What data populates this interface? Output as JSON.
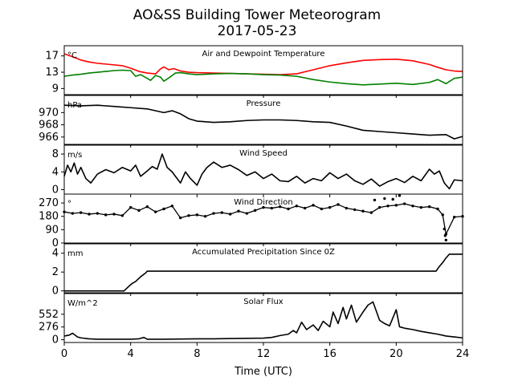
{
  "figure": {
    "title": "AO&SS Building Tower Meteorogram",
    "subtitle": "2017-05-23",
    "xlabel": "Time (UTC)"
  },
  "chart_data": [
    {
      "type": "line",
      "title": "Air and Dewpoint Temperature",
      "unit_label": "°C",
      "xlim": [
        0,
        24
      ],
      "ylim": [
        7.5,
        19.5
      ],
      "yticks": [
        9,
        13,
        17
      ],
      "xticks": [
        0,
        4,
        8,
        12,
        16,
        20,
        24
      ],
      "series": [
        {
          "color": "#ff0000",
          "x": [
            0,
            0.5,
            1,
            1.5,
            2,
            2.5,
            3,
            3.5,
            4,
            4.5,
            5,
            5.5,
            5.8,
            6,
            6.3,
            6.6,
            7,
            7.5,
            8,
            9,
            10,
            11,
            12,
            13,
            14,
            15,
            16,
            17,
            18,
            19,
            20,
            21,
            22,
            22.5,
            23,
            23.5,
            24
          ],
          "values": [
            17.5,
            16.8,
            16.0,
            15.5,
            15.2,
            15.0,
            14.8,
            14.6,
            14.0,
            13.2,
            12.8,
            12.6,
            13.8,
            14.3,
            13.6,
            13.9,
            13.3,
            13.0,
            12.9,
            12.8,
            12.7,
            12.6,
            12.5,
            12.4,
            12.6,
            13.6,
            14.6,
            15.3,
            15.9,
            16.1,
            16.2,
            15.8,
            14.9,
            14.2,
            13.6,
            13.3,
            13.2
          ]
        },
        {
          "color": "#008000",
          "x": [
            0,
            0.5,
            1,
            1.5,
            2,
            2.5,
            3,
            3.5,
            4,
            4.3,
            4.6,
            5,
            5.2,
            5.5,
            5.8,
            6,
            6.3,
            6.7,
            7,
            7.5,
            8,
            9,
            10,
            11,
            12,
            13,
            14,
            15,
            16,
            17,
            18,
            19,
            20,
            21,
            22,
            22.5,
            23,
            23.5,
            24
          ],
          "values": [
            12.0,
            12.3,
            12.5,
            12.8,
            13.0,
            13.2,
            13.4,
            13.5,
            13.4,
            12.0,
            12.4,
            11.5,
            11.0,
            12.2,
            11.8,
            10.8,
            11.6,
            12.8,
            12.9,
            12.6,
            12.4,
            12.6,
            12.7,
            12.6,
            12.4,
            12.3,
            12.0,
            11.2,
            10.6,
            10.2,
            9.9,
            10.1,
            10.3,
            10.0,
            10.5,
            11.2,
            10.2,
            11.5,
            11.8
          ]
        }
      ]
    },
    {
      "type": "line",
      "title": "Pressure",
      "unit_label": "hPa",
      "xlim": [
        0,
        24
      ],
      "ylim": [
        964.8,
        972.8
      ],
      "yticks": [
        966,
        968,
        970
      ],
      "xticks": [
        0,
        4,
        8,
        12,
        16,
        20,
        24
      ],
      "series": [
        {
          "color": "#000000",
          "x": [
            0,
            1,
            2,
            3,
            4,
            5,
            6,
            6.5,
            7,
            7.5,
            8,
            9,
            10,
            11,
            12,
            13,
            14,
            15,
            16,
            17,
            18,
            19,
            20,
            21,
            22,
            23,
            23.5,
            24
          ],
          "values": [
            971.2,
            971.1,
            971.2,
            971.0,
            970.8,
            970.6,
            970.0,
            970.3,
            969.8,
            969.0,
            968.6,
            968.4,
            968.5,
            968.7,
            968.8,
            968.8,
            968.7,
            968.5,
            968.4,
            967.8,
            967.1,
            966.9,
            966.7,
            966.5,
            966.3,
            966.4,
            965.7,
            966.1
          ]
        }
      ]
    },
    {
      "type": "line",
      "title": "Wind Speed",
      "unit_label": "m/s",
      "xlim": [
        0,
        24
      ],
      "ylim": [
        -1,
        10
      ],
      "yticks": [
        0,
        4,
        8
      ],
      "xticks": [
        0,
        4,
        8,
        12,
        16,
        20,
        24
      ],
      "series": [
        {
          "color": "#000000",
          "x": [
            0,
            0.2,
            0.4,
            0.6,
            0.8,
            1,
            1.3,
            1.6,
            2,
            2.5,
            3,
            3.5,
            4,
            4.3,
            4.6,
            5,
            5.3,
            5.6,
            5.9,
            6.2,
            6.5,
            6.8,
            7,
            7.3,
            7.6,
            8,
            8.3,
            8.6,
            9,
            9.5,
            10,
            10.5,
            11,
            11.5,
            12,
            12.5,
            13,
            13.5,
            14,
            14.5,
            15,
            15.5,
            16,
            16.5,
            17,
            17.5,
            18,
            18.5,
            19,
            19.5,
            20,
            20.5,
            21,
            21.5,
            22,
            22.3,
            22.6,
            22.9,
            23.2,
            23.5,
            24
          ],
          "values": [
            3.0,
            5.5,
            4.0,
            6.0,
            3.5,
            5.0,
            2.5,
            1.5,
            3.5,
            4.5,
            3.8,
            5.0,
            4.2,
            5.5,
            3.0,
            4.2,
            5.2,
            4.6,
            8.0,
            5.0,
            4.0,
            2.5,
            1.5,
            4.0,
            2.5,
            1.0,
            3.5,
            5.0,
            6.2,
            5.0,
            5.5,
            4.5,
            3.2,
            4.0,
            2.5,
            3.5,
            2.0,
            1.8,
            3.0,
            1.5,
            2.5,
            2.0,
            3.8,
            2.5,
            3.5,
            2.0,
            1.2,
            2.4,
            0.8,
            1.8,
            2.5,
            1.6,
            3.0,
            2.0,
            4.6,
            3.5,
            4.2,
            1.5,
            0.2,
            2.2,
            2.0
          ]
        }
      ]
    },
    {
      "type": "scatter",
      "title": "Wind Direction",
      "unit_label": "°",
      "xlim": [
        0,
        24
      ],
      "ylim": [
        0,
        330
      ],
      "yticks": [
        0,
        90,
        180,
        270
      ],
      "xticks": [
        0,
        4,
        8,
        12,
        16,
        20,
        24
      ],
      "series": [
        {
          "color": "#000000",
          "x": [
            0,
            0.5,
            1,
            1.5,
            2,
            2.5,
            3,
            3.5,
            4,
            4.5,
            5,
            5.5,
            6,
            6.5,
            7,
            7.5,
            8,
            8.5,
            9,
            9.5,
            10,
            10.5,
            11,
            11.5,
            12,
            12.5,
            13,
            13.5,
            14,
            14.5,
            15,
            15.5,
            16,
            16.5,
            17,
            17.5,
            18,
            18.5,
            19,
            19.5,
            20,
            20.5,
            21,
            21.5,
            22,
            22.5,
            22.8,
            23,
            23.5,
            24
          ],
          "values": [
            210,
            200,
            205,
            195,
            200,
            190,
            195,
            185,
            240,
            220,
            245,
            210,
            230,
            250,
            170,
            185,
            190,
            180,
            200,
            205,
            195,
            215,
            200,
            220,
            240,
            235,
            245,
            230,
            250,
            235,
            255,
            230,
            240,
            260,
            235,
            225,
            215,
            205,
            240,
            250,
            255,
            265,
            250,
            240,
            245,
            230,
            190,
            60,
            175,
            180
          ]
        },
        {
          "color": "#000000",
          "x": [
            18.7,
            19.3,
            19.8,
            20.2,
            22.9,
            22.95,
            23.0
          ],
          "values": [
            290,
            300,
            295,
            320,
            95,
            50,
            20
          ]
        }
      ]
    },
    {
      "type": "line",
      "title": "Accumulated Precipitation Since 0Z",
      "unit_label": "mm",
      "xlim": [
        0,
        24
      ],
      "ylim": [
        -0.2,
        5.0
      ],
      "yticks": [
        0,
        2,
        4
      ],
      "xticks": [
        0,
        4,
        8,
        12,
        16,
        20,
        24
      ],
      "series": [
        {
          "color": "#000000",
          "x": [
            0,
            3.6,
            3.9,
            4.1,
            4.3,
            4.6,
            4.9,
            5.0,
            22.4,
            22.6,
            22.8,
            23.0,
            23.2,
            24
          ],
          "values": [
            0,
            0,
            0.5,
            0.8,
            1.0,
            1.5,
            1.9,
            2.1,
            2.1,
            2.6,
            3.0,
            3.5,
            3.9,
            3.9
          ]
        }
      ]
    },
    {
      "type": "line",
      "title": "Solar Flux",
      "unit_label": "W/m^2",
      "xlim": [
        0,
        24
      ],
      "ylim": [
        -60,
        1000
      ],
      "yticks": [
        0,
        276,
        552
      ],
      "xticks": [
        0,
        4,
        8,
        12,
        16,
        20,
        24
      ],
      "series": [
        {
          "color": "#000000",
          "x": [
            0,
            0.3,
            0.5,
            0.8,
            1,
            1.5,
            2,
            3,
            4,
            4.5,
            4.8,
            5,
            6,
            7,
            8,
            9,
            10,
            11,
            12,
            12.5,
            13,
            13.5,
            13.8,
            14,
            14.3,
            14.6,
            15,
            15.3,
            15.6,
            16,
            16.2,
            16.5,
            16.8,
            17,
            17.3,
            17.6,
            18,
            18.3,
            18.6,
            19,
            19.3,
            19.6,
            20,
            20.2,
            20.5,
            21,
            21.5,
            22,
            22.5,
            23,
            23.5,
            24
          ],
          "values": [
            80,
            100,
            140,
            60,
            40,
            20,
            10,
            10,
            10,
            20,
            50,
            10,
            10,
            15,
            20,
            20,
            25,
            30,
            35,
            50,
            90,
            120,
            200,
            150,
            380,
            220,
            320,
            200,
            400,
            280,
            600,
            350,
            700,
            450,
            750,
            380,
            600,
            750,
            820,
            420,
            350,
            300,
            650,
            280,
            250,
            220,
            180,
            150,
            120,
            80,
            60,
            40
          ]
        }
      ]
    }
  ]
}
